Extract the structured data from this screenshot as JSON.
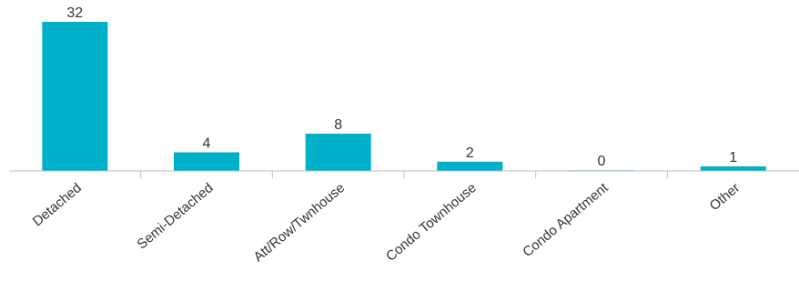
{
  "chart_data": {
    "type": "bar",
    "categories": [
      "Detached",
      "Semi-Detached",
      "Att/Row/Twnhouse",
      "Condo Townhouse",
      "Condo Apartment",
      "Other"
    ],
    "values": [
      32,
      4,
      8,
      2,
      0,
      1
    ],
    "title": "",
    "xlabel": "",
    "ylabel": "",
    "ylim": [
      0,
      32
    ],
    "grid": false,
    "data_labels": true,
    "bar_color": "#00b0c8",
    "axis_color": "#bfbfbf"
  }
}
